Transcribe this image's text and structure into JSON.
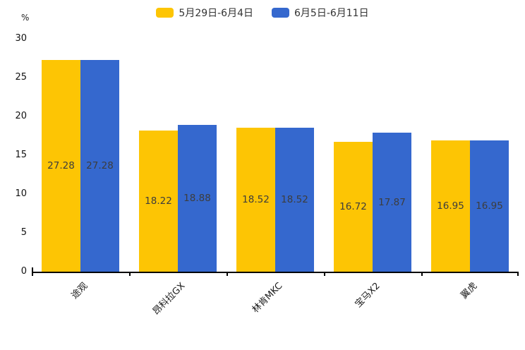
{
  "chart_data": {
    "type": "bar",
    "title": "",
    "xlabel": "",
    "ylabel": "%",
    "categories": [
      "途观",
      "昂科拉GX",
      "林肯MKC",
      "宝马X2",
      "翼虎"
    ],
    "series": [
      {
        "name": "5月29日-6月4日",
        "color": "#FDC504",
        "values": [
          27.28,
          18.22,
          18.52,
          16.72,
          16.95
        ]
      },
      {
        "name": "6月5日-6月11日",
        "color": "#3568CE",
        "values": [
          27.28,
          18.88,
          18.52,
          17.87,
          16.95
        ]
      }
    ],
    "value_labels": [
      "27.28",
      "18.22",
      "18.52",
      "16.72",
      "16.95",
      "27.28",
      "18.88",
      "18.52",
      "17.87",
      "16.95"
    ],
    "ylim": [
      0,
      30
    ],
    "yticks": [
      0,
      5,
      10,
      15,
      20,
      25,
      30
    ],
    "grid": false,
    "legend_position": "top",
    "bar_label_position": "center-inside",
    "axis_color": "#000000",
    "label_color": "#3d3d3d"
  }
}
